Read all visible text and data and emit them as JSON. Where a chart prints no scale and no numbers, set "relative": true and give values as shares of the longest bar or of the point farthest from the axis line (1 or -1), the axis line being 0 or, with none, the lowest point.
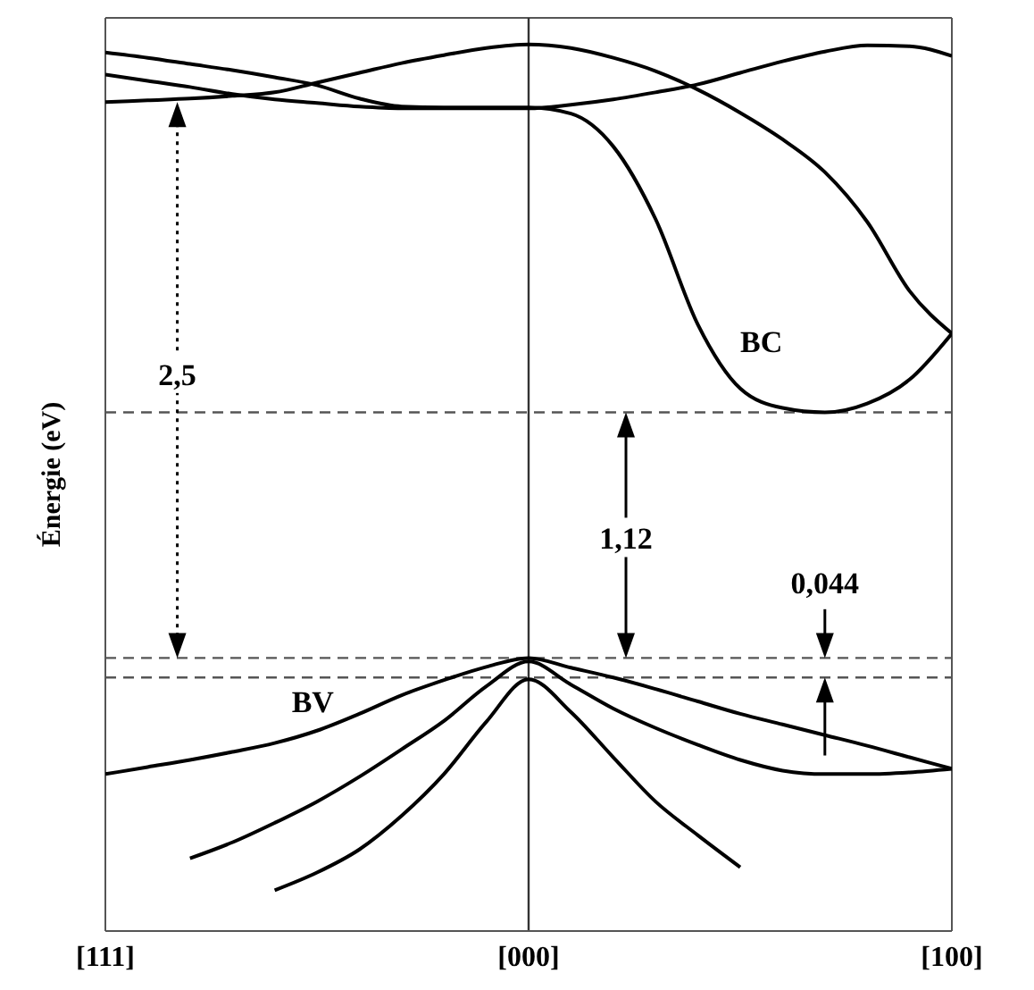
{
  "chart_data": {
    "type": "line",
    "relative": true,
    "ylabel": "Énergie (eV)",
    "marker": "none",
    "categories": [
      "[111]",
      null,
      null,
      null,
      null,
      null,
      null,
      null,
      null,
      null,
      "[000]",
      null,
      null,
      null,
      null,
      null,
      null,
      null,
      null,
      null,
      "[100]"
    ],
    "series": [
      {
        "color": "#000000",
        "values": [
          0.935,
          0.937,
          0.939,
          0.942,
          0.946,
          0.957,
          0.968,
          0.979,
          0.988,
          0.996,
          1.0,
          0.996,
          0.985,
          0.97,
          0.949,
          0.923,
          0.893,
          0.856,
          0.8,
          0.722,
          0.674
        ]
      },
      {
        "color": "#000000",
        "values": [
          0.991,
          0.985,
          0.978,
          0.971,
          0.963,
          0.954,
          0.939,
          0.93,
          0.929,
          0.929,
          0.929,
          0.922,
          0.885,
          0.803,
          0.684,
          0.612,
          0.59,
          0.585,
          0.595,
          0.622,
          0.674
        ]
      },
      {
        "color": "#000000",
        "values": [
          0.966,
          0.959,
          0.952,
          0.944,
          0.938,
          0.934,
          0.93,
          0.928,
          0.928,
          0.928,
          0.928,
          0.932,
          0.938,
          0.946,
          0.955,
          0.968,
          0.981,
          0.992,
          0.999,
          0.998,
          0.987
        ]
      },
      {
        "color": "#000000",
        "values": [
          0.177,
          0.185,
          0.193,
          0.202,
          0.212,
          0.226,
          0.245,
          0.266,
          0.283,
          0.298,
          0.308,
          0.297,
          0.286,
          0.273,
          0.259,
          0.245,
          0.233,
          0.221,
          0.209,
          0.196,
          0.183
        ]
      },
      {
        "color": "#000000",
        "values": [
          null,
          null,
          0.082,
          0.1,
          0.122,
          0.146,
          0.174,
          0.205,
          0.237,
          0.276,
          0.304,
          0.278,
          0.251,
          0.229,
          0.21,
          0.193,
          0.181,
          0.177,
          0.177,
          0.179,
          0.183
        ]
      },
      {
        "color": "#000000",
        "values": [
          null,
          null,
          null,
          null,
          0.046,
          0.066,
          0.092,
          0.13,
          0.177,
          0.236,
          0.284,
          0.247,
          0.196,
          0.146,
          0.108,
          0.072,
          null,
          null,
          null,
          null,
          null
        ]
      }
    ],
    "ref_lines": [
      {
        "axis": "y",
        "value": 0.308,
        "line_style": "dashed"
      },
      {
        "axis": "y",
        "value": 0.585,
        "line_style": "dashed"
      },
      {
        "axis": "y",
        "value": 0.286,
        "line_style": "dashed"
      },
      {
        "axis": "x",
        "value": "[000]",
        "line_style": "solid"
      }
    ],
    "annotations": [
      "2,5",
      "1,12",
      "0,044",
      "BC",
      "BV"
    ]
  }
}
